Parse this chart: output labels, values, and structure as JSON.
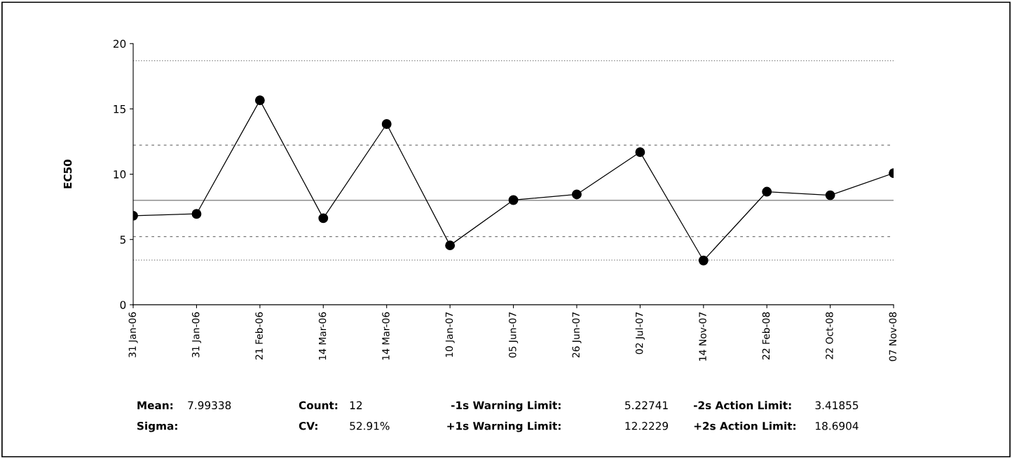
{
  "chart_data": {
    "type": "line",
    "ylabel": "EC50",
    "categories": [
      "31 Jan-06",
      "31 Jan-06",
      "21 Feb-06",
      "14 Mar-06",
      "14 Mar-06",
      "10 Jan-07",
      "05 Jun-07",
      "26 Jun-07",
      "02 Jul-07",
      "14 Nov-07",
      "22 Feb-08",
      "22 Oct-08",
      "07 Nov-08"
    ],
    "series": [
      {
        "color": "#000000",
        "values": [
          6.82,
          6.96,
          15.66,
          6.63,
          13.84,
          4.55,
          8.02,
          8.45,
          11.69,
          3.39,
          8.66,
          8.39,
          10.08
        ]
      }
    ],
    "marker": "circle",
    "line_style": "solid",
    "grid": false,
    "ylim": [
      0,
      20
    ],
    "yticks": [
      0,
      5,
      10,
      15,
      20
    ],
    "ref_lines": [
      {
        "axis": "y",
        "value": 18.6904,
        "color": "#777777",
        "line_style": "dotted"
      },
      {
        "axis": "y",
        "value": 12.2229,
        "color": "#777777",
        "line_style": "dashed"
      },
      {
        "axis": "y",
        "value": 7.99338,
        "color": "#777777",
        "line_style": "solid"
      },
      {
        "axis": "y",
        "value": 5.22741,
        "color": "#777777",
        "line_style": "dashed"
      },
      {
        "axis": "y",
        "value": 3.41855,
        "color": "#777777",
        "line_style": "dotted"
      }
    ],
    "annotations": [
      "Mean:",
      "7.99338",
      "Count:",
      "12",
      "-1s Warning Limit:",
      "5.22741",
      "-2s Action Limit:",
      "3.41855",
      "Sigma:",
      "CV:",
      "52.91%",
      "+1s Warning Limit:",
      "12.2229",
      "+2s Action Limit:",
      "18.6904"
    ]
  }
}
